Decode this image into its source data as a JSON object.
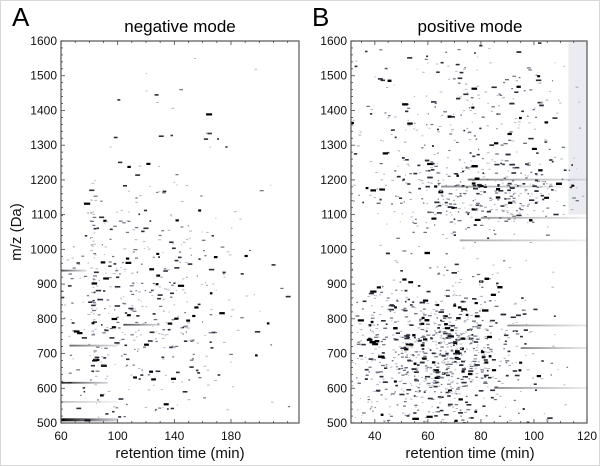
{
  "figure": {
    "panels": [
      {
        "letter": "A",
        "title": "negative mode",
        "xlabel": "retention time (min)",
        "ylabel": "m/z (Da)"
      },
      {
        "letter": "B",
        "title": "positive mode",
        "xlabel": "retention time (min)",
        "ylabel": ""
      }
    ]
  },
  "chart_data": [
    {
      "type": "scatter",
      "title": "negative mode",
      "panel": "A",
      "xlabel": "retention time (min)",
      "ylabel": "m/z (Da)",
      "xlim": [
        60,
        228
      ],
      "ylim": [
        500,
        1600
      ],
      "xticks": [
        60,
        100,
        140,
        180
      ],
      "yticks": [
        500,
        600,
        700,
        800,
        900,
        1000,
        1100,
        1200,
        1300,
        1400,
        1500,
        1600
      ],
      "grid": false,
      "legend": "none",
      "description": "2D LC-MS feature map; dark spots are features, horizontal streaks are long-eluting ions",
      "streaks": [
        {
          "x0": 60,
          "x1": 100,
          "y": 510,
          "intensity": 1.0
        },
        {
          "x0": 60,
          "x1": 93,
          "y": 615,
          "intensity": 0.85
        },
        {
          "x0": 60,
          "x1": 78,
          "y": 938,
          "intensity": 0.7
        },
        {
          "x0": 66,
          "x1": 100,
          "y": 722,
          "intensity": 0.6
        },
        {
          "x0": 104,
          "x1": 130,
          "y": 782,
          "intensity": 0.7
        },
        {
          "x0": 60,
          "x1": 100,
          "y": 560,
          "intensity": 0.25
        }
      ],
      "density": {
        "n_spots": 650,
        "x_center": 118,
        "x_spread": 38,
        "y_center": 820,
        "y_spread": 190,
        "vertical_band_x": 82
      }
    },
    {
      "type": "scatter",
      "title": "positive mode",
      "panel": "B",
      "xlabel": "retention time (min)",
      "ylabel": "m/z (Da)",
      "xlim": [
        31,
        120
      ],
      "ylim": [
        500,
        1600
      ],
      "xticks": [
        40,
        60,
        80,
        100,
        120
      ],
      "yticks": [
        500,
        600,
        700,
        800,
        900,
        1000,
        1100,
        1200,
        1300,
        1400,
        1500,
        1600
      ],
      "grid": false,
      "legend": "none",
      "description": "2D LC-MS feature map; dense cluster 500-900 Da and band 1100-1250 Da; shaded background region above 113 min from 1100 to 1600 Da",
      "streaks": [
        {
          "x0": 75,
          "x1": 120,
          "y": 1200,
          "intensity": 0.5
        },
        {
          "x0": 65,
          "x1": 110,
          "y": 1180,
          "intensity": 0.45
        },
        {
          "x0": 80,
          "x1": 120,
          "y": 1090,
          "intensity": 0.4
        },
        {
          "x0": 90,
          "x1": 120,
          "y": 780,
          "intensity": 0.45
        },
        {
          "x0": 95,
          "x1": 120,
          "y": 715,
          "intensity": 0.5
        },
        {
          "x0": 85,
          "x1": 120,
          "y": 600,
          "intensity": 0.45
        },
        {
          "x0": 72,
          "x1": 120,
          "y": 1025,
          "intensity": 0.35
        }
      ],
      "density": {
        "n_spots": 2200,
        "clusters": [
          {
            "x_center": 62,
            "x_spread": 18,
            "y_center": 700,
            "y_spread": 110,
            "weight": 0.6
          },
          {
            "x_center": 80,
            "x_spread": 18,
            "y_center": 1160,
            "y_spread": 55,
            "weight": 0.2
          },
          {
            "x_center": 75,
            "x_spread": 24,
            "y_center": 1350,
            "y_spread": 150,
            "weight": 0.2
          }
        ]
      },
      "shaded_region": {
        "x0": 113,
        "x1": 120,
        "y0": 1100,
        "y1": 1600
      }
    }
  ]
}
